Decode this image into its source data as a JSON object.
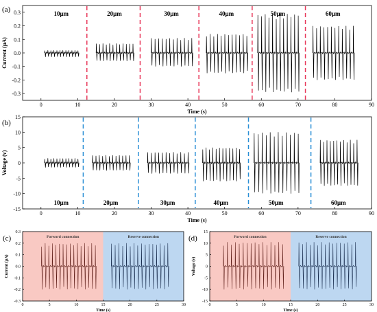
{
  "chart_data": [
    {
      "panel": "(a)",
      "type": "line",
      "xlabel": "Time (s)",
      "ylabel": "Current (μA)",
      "xlim": [
        -5,
        90
      ],
      "ylim": [
        -0.35,
        0.35
      ],
      "xticks": [
        0,
        10,
        20,
        30,
        40,
        50,
        60,
        70,
        80,
        90
      ],
      "yticks": [
        -0.3,
        -0.2,
        -0.1,
        0.0,
        0.1,
        0.2,
        0.3
      ],
      "ytick_labels": [
        "-0.3",
        "-0.2",
        "-0.1",
        "0.0",
        "0.1",
        "0.2",
        "0.3"
      ],
      "separators_x": [
        12.5,
        27,
        43,
        57.5,
        72
      ],
      "separator_color": "#e8385a",
      "segments": [
        {
          "label": "10μm",
          "t_start": 1,
          "t_end": 10,
          "pos_peak": 0.02,
          "neg_peak": -0.03
        },
        {
          "label": "20μm",
          "t_start": 15,
          "t_end": 25,
          "pos_peak": 0.07,
          "neg_peak": -0.06
        },
        {
          "label": "30μm",
          "t_start": 30,
          "t_end": 41,
          "pos_peak": 0.11,
          "neg_peak": -0.1
        },
        {
          "label": "40μm",
          "t_start": 45,
          "t_end": 56,
          "pos_peak": 0.14,
          "neg_peak": -0.15
        },
        {
          "label": "50μm",
          "t_start": 59,
          "t_end": 70,
          "pos_peak": 0.29,
          "neg_peak": -0.29
        },
        {
          "label": "60μm",
          "t_start": 74,
          "t_end": 85,
          "pos_peak": 0.2,
          "neg_peak": -0.2
        }
      ]
    },
    {
      "panel": "(b)",
      "type": "line",
      "xlabel": "Time (s)",
      "ylabel": "Voltage (v)",
      "xlim": [
        -5,
        90
      ],
      "ylim": [
        -15,
        15
      ],
      "xticks": [
        0,
        10,
        20,
        30,
        40,
        50,
        60,
        70,
        80,
        90
      ],
      "yticks": [
        -15,
        -10,
        -5,
        0,
        5,
        10,
        15
      ],
      "ytick_labels": [
        "-15",
        "-10",
        "-5",
        "0",
        "5",
        "10",
        "15"
      ],
      "separators_x": [
        11.5,
        26.5,
        42,
        56.5,
        73.5
      ],
      "separator_color": "#2a8fd6",
      "segments": [
        {
          "label": "10μm",
          "t_start": 1,
          "t_end": 10,
          "pos_peak": 1.5,
          "neg_peak": -1.5
        },
        {
          "label": "20μm",
          "t_start": 14,
          "t_end": 24,
          "pos_peak": 2.5,
          "neg_peak": -2.5
        },
        {
          "label": "30μm",
          "t_start": 29,
          "t_end": 40,
          "pos_peak": 3.5,
          "neg_peak": -3.5
        },
        {
          "label": "40μm",
          "t_start": 44,
          "t_end": 54,
          "pos_peak": 5,
          "neg_peak": -6
        },
        {
          "label": "50μm",
          "t_start": 58,
          "t_end": 70,
          "pos_peak": 10,
          "neg_peak": -10
        },
        {
          "label": "60μm",
          "t_start": 76,
          "t_end": 86,
          "pos_peak": 7.5,
          "neg_peak": -7.5
        }
      ]
    },
    {
      "panel": "(c)",
      "type": "line",
      "xlabel": "Time (s)",
      "ylabel": "Current (μA)",
      "xlim": [
        0,
        30
      ],
      "ylim": [
        -0.3,
        0.3
      ],
      "xticks": [
        0,
        5,
        10,
        15,
        20,
        25,
        30
      ],
      "yticks": [
        -0.3,
        -0.2,
        -0.1,
        0.0,
        0.1,
        0.2,
        0.3
      ],
      "ytick_labels": [
        "-0.3",
        "-0.2",
        "-0.1",
        "0.0",
        "0.1",
        "0.2",
        "0.3"
      ],
      "regions": [
        {
          "label": "Forword connection",
          "x_start": 0,
          "x_end": 15,
          "color": "#f9c9c3"
        },
        {
          "label": "Reserve connection",
          "x_start": 15,
          "x_end": 30,
          "color": "#bdd7f1"
        }
      ],
      "segments": [
        {
          "t_start": 3.5,
          "t_end": 13.5,
          "pos_peak": 0.2,
          "neg_peak": -0.2,
          "color": "#5a1a14"
        },
        {
          "t_start": 16.5,
          "t_end": 27,
          "pos_peak": 0.2,
          "neg_peak": -0.2,
          "color": "#15294a"
        }
      ]
    },
    {
      "panel": "(d)",
      "type": "line",
      "xlabel": "Time (s)",
      "ylabel": "Voltage (v)",
      "xlim": [
        0,
        30
      ],
      "ylim": [
        -15,
        15
      ],
      "xticks": [
        0,
        5,
        10,
        15,
        20,
        25,
        30
      ],
      "yticks": [
        -15,
        -10,
        -5,
        0,
        5,
        10,
        15
      ],
      "ytick_labels": [
        "-15",
        "-10",
        "-5",
        "0",
        "5",
        "10",
        "15"
      ],
      "regions": [
        {
          "label": "Forword connection",
          "x_start": 0,
          "x_end": 15,
          "color": "#f9c9c3"
        },
        {
          "label": "Reserve connection",
          "x_start": 15,
          "x_end": 30,
          "color": "#bdd7f1"
        }
      ],
      "segments": [
        {
          "t_start": 2.5,
          "t_end": 13.5,
          "pos_peak": 10.5,
          "neg_peak": -10,
          "color": "#5a1a14"
        },
        {
          "t_start": 16.5,
          "t_end": 27,
          "pos_peak": 10.5,
          "neg_peak": -10,
          "color": "#15294a"
        }
      ]
    }
  ]
}
